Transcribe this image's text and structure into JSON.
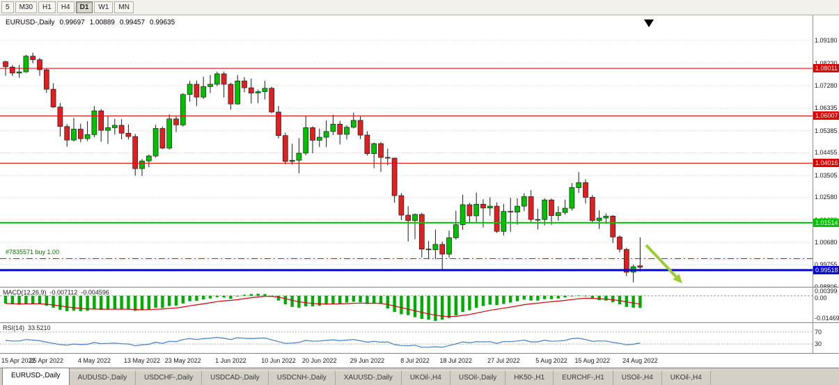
{
  "toolbar": {
    "timeframes": [
      {
        "label": "5",
        "active": false
      },
      {
        "label": "M30",
        "active": false
      },
      {
        "label": "H1",
        "active": false
      },
      {
        "label": "H4",
        "active": false
      },
      {
        "label": "D1",
        "active": true
      },
      {
        "label": "W1",
        "active": false
      },
      {
        "label": "MN",
        "active": false
      }
    ]
  },
  "chart_header": {
    "symbol": "EURUSD-,Daily",
    "open": "0.99697",
    "high": "1.00889",
    "low": "0.99457",
    "close": "0.99635"
  },
  "price_axis_ticks": [
    "1.09180",
    "1.08230",
    "1.07280",
    "1.06335",
    "1.05385",
    "1.04455",
    "1.03505",
    "1.02580",
    "1.01630",
    "1.00680",
    "0.99755",
    "0.98805"
  ],
  "hlines": [
    {
      "name": "resistance-upper",
      "price": 1.08011,
      "label": "1.08011",
      "color": "#E00000",
      "width": 1
    },
    {
      "name": "resistance-mid",
      "price": 1.06007,
      "label": "1.06007",
      "color": "#E00000",
      "width": 1
    },
    {
      "name": "resistance-lower",
      "price": 1.04016,
      "label": "1.04016",
      "color": "#E00000",
      "width": 1
    },
    {
      "name": "support-green",
      "price": 1.01514,
      "label": "1.01514",
      "color": "#00C400",
      "width": 2
    },
    {
      "name": "current-level-blue",
      "price": 0.99518,
      "label": "0.99518",
      "color": "#0000D8",
      "width": 3
    }
  ],
  "position_line": {
    "label": "#7835571 buy 1.00",
    "price": 1.0,
    "color": "#008000"
  },
  "objects": {
    "top_marker": {
      "shape": "down-triangle",
      "color": "#000000"
    },
    "trend_arrow": {
      "direction": "down-right",
      "color": "#9ACD32"
    }
  },
  "chart_data": {
    "type": "candlestick",
    "symbol": "EURUSD",
    "timeframe": "Daily",
    "bull_color": "#00C000",
    "bear_color": "#E02020",
    "x_labels": [
      {
        "label": "15 Apr 2022",
        "i": 0
      },
      {
        "label": "25 Apr 2022",
        "i": 6
      },
      {
        "label": "4 May 2022",
        "i": 13
      },
      {
        "label": "13 May 2022",
        "i": 20
      },
      {
        "label": "23 May 2022",
        "i": 26
      },
      {
        "label": "1 Jun 2022",
        "i": 33
      },
      {
        "label": "10 Jun 2022",
        "i": 40
      },
      {
        "label": "20 Jun 2022",
        "i": 46
      },
      {
        "label": "29 Jun 2022",
        "i": 53
      },
      {
        "label": "8 Jul 2022",
        "i": 60
      },
      {
        "label": "18 Jul 2022",
        "i": 66
      },
      {
        "label": "27 Jul 2022",
        "i": 73
      },
      {
        "label": "5 Aug 2022",
        "i": 80
      },
      {
        "label": "15 Aug 2022",
        "i": 86
      },
      {
        "label": "24 Aug 2022",
        "i": 93
      }
    ],
    "candles": [
      [
        1.0829,
        1.0833,
        1.077,
        1.0808
      ],
      [
        1.0806,
        1.0815,
        1.0769,
        1.0781
      ],
      [
        1.0781,
        1.0815,
        1.0761,
        1.0786
      ],
      [
        1.0786,
        1.0858,
        1.0782,
        1.0852
      ],
      [
        1.0852,
        1.0867,
        1.0822,
        1.0837
      ],
      [
        1.0837,
        1.0845,
        1.077,
        1.0795
      ],
      [
        1.0795,
        1.08,
        1.0697,
        1.0713
      ],
      [
        1.0713,
        1.0738,
        1.0635,
        1.0638
      ],
      [
        1.0638,
        1.0655,
        1.0514,
        1.0556
      ],
      [
        1.0556,
        1.0567,
        1.0471,
        1.0499
      ],
      [
        1.0499,
        1.0592,
        1.0493,
        1.0545
      ],
      [
        1.0545,
        1.0568,
        1.049,
        1.0505
      ],
      [
        1.0505,
        1.0578,
        1.0495,
        1.0522
      ],
      [
        1.0522,
        1.0642,
        1.0511,
        1.0622
      ],
      [
        1.0622,
        1.063,
        1.0492,
        1.054
      ],
      [
        1.054,
        1.0599,
        1.0483,
        1.0551
      ],
      [
        1.0551,
        1.0588,
        1.0522,
        1.0561
      ],
      [
        1.0561,
        1.0587,
        1.0502,
        1.0528
      ],
      [
        1.0528,
        1.0565,
        1.0501,
        1.0514
      ],
      [
        1.0514,
        1.0525,
        1.0349,
        1.0379
      ],
      [
        1.0379,
        1.0419,
        1.0348,
        1.0411
      ],
      [
        1.0411,
        1.0438,
        1.0384,
        1.0432
      ],
      [
        1.0432,
        1.0563,
        1.0425,
        1.0548
      ],
      [
        1.0548,
        1.0556,
        1.0461,
        1.0465
      ],
      [
        1.0465,
        1.0607,
        1.0459,
        1.0588
      ],
      [
        1.0588,
        1.0601,
        1.0532,
        1.0563
      ],
      [
        1.0563,
        1.0697,
        1.0556,
        1.0691
      ],
      [
        1.0691,
        1.0748,
        1.0661,
        1.0734
      ],
      [
        1.0734,
        1.075,
        1.0642,
        1.068
      ],
      [
        1.068,
        1.0765,
        1.0672,
        1.0724
      ],
      [
        1.0724,
        1.0773,
        1.0697,
        1.0734
      ],
      [
        1.0734,
        1.0787,
        1.0726,
        1.0778
      ],
      [
        1.0778,
        1.0787,
        1.0678,
        1.0734
      ],
      [
        1.0734,
        1.074,
        1.0627,
        1.0651
      ],
      [
        1.0651,
        1.0773,
        1.0648,
        1.0748
      ],
      [
        1.0748,
        1.0764,
        1.07,
        1.0719
      ],
      [
        1.0719,
        1.0758,
        1.0653,
        1.0697
      ],
      [
        1.0697,
        1.0712,
        1.0654,
        1.0703
      ],
      [
        1.0703,
        1.0749,
        1.067,
        1.0717
      ],
      [
        1.0717,
        1.0724,
        1.0612,
        1.0617
      ],
      [
        1.0617,
        1.0642,
        1.0506,
        1.0518
      ],
      [
        1.0518,
        1.0529,
        1.0397,
        1.0409
      ],
      [
        1.0409,
        1.0483,
        1.0396,
        1.0414
      ],
      [
        1.0414,
        1.0507,
        1.0359,
        1.0444
      ],
      [
        1.0444,
        1.0601,
        1.0435,
        1.0551
      ],
      [
        1.0551,
        1.0557,
        1.0443,
        1.0498
      ],
      [
        1.0498,
        1.0547,
        1.047,
        1.0511
      ],
      [
        1.0511,
        1.0582,
        1.0469,
        1.0535
      ],
      [
        1.0535,
        1.0605,
        1.052,
        1.0566
      ],
      [
        1.0566,
        1.058,
        1.0481,
        1.0523
      ],
      [
        1.0523,
        1.0561,
        1.0501,
        1.0553
      ],
      [
        1.0553,
        1.0615,
        1.0548,
        1.0582
      ],
      [
        1.0582,
        1.0602,
        1.0503,
        1.052
      ],
      [
        1.052,
        1.0536,
        1.0434,
        1.0442
      ],
      [
        1.0442,
        1.0488,
        1.0381,
        1.0484
      ],
      [
        1.0484,
        1.049,
        1.0365,
        1.0426
      ],
      [
        1.0426,
        1.0463,
        1.0393,
        1.0423
      ],
      [
        1.0423,
        1.0425,
        1.0235,
        1.0265
      ],
      [
        1.0265,
        1.0276,
        1.0162,
        1.0183
      ],
      [
        1.0183,
        1.0221,
        1.0072,
        1.016
      ],
      [
        1.016,
        1.019,
        1.0082,
        1.0186
      ],
      [
        1.0186,
        1.0193,
        1.0005,
        1.004
      ],
      [
        1.004,
        1.0074,
        0.9998,
        1.0037
      ],
      [
        1.0037,
        1.0122,
        0.9998,
        1.006
      ],
      [
        1.006,
        1.0072,
        0.995,
        1.0019
      ],
      [
        1.0019,
        1.0118,
        1.0004,
        1.0088
      ],
      [
        1.0088,
        1.0201,
        1.008,
        1.0143
      ],
      [
        1.0143,
        1.0269,
        1.0121,
        1.0227
      ],
      [
        1.0227,
        1.0235,
        1.0152,
        1.018
      ],
      [
        1.018,
        1.0278,
        1.0154,
        1.0229
      ],
      [
        1.0229,
        1.025,
        1.0131,
        1.0213
      ],
      [
        1.0213,
        1.0258,
        1.018,
        1.0221
      ],
      [
        1.0221,
        1.0236,
        1.0108,
        1.0115
      ],
      [
        1.0115,
        1.023,
        1.0097,
        1.0199
      ],
      [
        1.0199,
        1.0256,
        1.0113,
        1.0196
      ],
      [
        1.0196,
        1.0254,
        1.0143,
        1.0221
      ],
      [
        1.0221,
        1.0275,
        1.02,
        1.0261
      ],
      [
        1.0261,
        1.0288,
        1.0154,
        1.0165
      ],
      [
        1.0165,
        1.021,
        1.0123,
        1.0165
      ],
      [
        1.0165,
        1.0254,
        1.014,
        1.0247
      ],
      [
        1.0247,
        1.0253,
        1.0142,
        1.0181
      ],
      [
        1.0181,
        1.0221,
        1.016,
        1.0194
      ],
      [
        1.0194,
        1.0248,
        1.0185,
        1.0212
      ],
      [
        1.0212,
        1.0318,
        1.0202,
        1.0299
      ],
      [
        1.0299,
        1.0364,
        1.0276,
        1.032
      ],
      [
        1.032,
        1.0334,
        1.0232,
        1.0258
      ],
      [
        1.0258,
        1.0268,
        1.0154,
        1.016
      ],
      [
        1.016,
        1.0203,
        1.0125,
        1.0171
      ],
      [
        1.0171,
        1.019,
        1.0146,
        1.0179
      ],
      [
        1.0179,
        1.0184,
        1.0066,
        1.0091
      ],
      [
        1.0091,
        1.0098,
        1.0026,
        1.0039
      ],
      [
        1.0039,
        1.0046,
        0.9926,
        0.9943
      ],
      [
        0.9943,
        0.9975,
        0.99,
        0.9966
      ],
      [
        0.99697,
        1.00889,
        0.99457,
        0.99635
      ]
    ],
    "indicators": {
      "macd": {
        "label": "MACD(12,26,9)",
        "value_main": "-0.007112",
        "value_signal": "-0.004596",
        "axis_labels": [
          "0.00399",
          "0.00",
          "-0.01469"
        ],
        "histogram": [
          -0.0045,
          -0.005,
          -0.0052,
          -0.0048,
          -0.0045,
          -0.0048,
          -0.0058,
          -0.007,
          -0.0082,
          -0.009,
          -0.0088,
          -0.009,
          -0.0088,
          -0.008,
          -0.0082,
          -0.008,
          -0.0077,
          -0.0078,
          -0.008,
          -0.0088,
          -0.0085,
          -0.008,
          -0.007,
          -0.0072,
          -0.006,
          -0.0058,
          -0.0045,
          -0.0032,
          -0.003,
          -0.0022,
          -0.0016,
          -0.0008,
          -0.001,
          -0.0018,
          -0.0004,
          0.0006,
          0.001,
          0.0012,
          0.001,
          -0.0002,
          -0.0028,
          -0.005,
          -0.0065,
          -0.007,
          -0.0062,
          -0.0062,
          -0.0058,
          -0.0052,
          -0.0045,
          -0.0045,
          -0.004,
          -0.0035,
          -0.0038,
          -0.0048,
          -0.0045,
          -0.0048,
          -0.0075,
          -0.0095,
          -0.0108,
          -0.0113,
          -0.0125,
          -0.0135,
          -0.014,
          -0.0147,
          -0.014,
          -0.013,
          -0.0115,
          -0.0095,
          -0.0085,
          -0.007,
          -0.006,
          -0.0052,
          -0.0055,
          -0.0048,
          -0.004,
          -0.0032,
          -0.0022,
          -0.0028,
          -0.0028,
          -0.002,
          -0.002,
          -0.0016,
          -0.001,
          -0.0004,
          0.0002,
          -0.0002,
          -0.0018,
          -0.0025,
          -0.0028,
          -0.0038,
          -0.005,
          -0.0065,
          -0.007,
          -0.00711
        ]
      },
      "rsi": {
        "label": "RSI(14)",
        "value": "33.5210",
        "levels": [
          70,
          30
        ],
        "values": [
          42,
          40,
          40,
          45,
          43,
          41,
          36,
          32,
          28,
          26,
          30,
          28,
          29,
          35,
          31,
          32,
          33,
          31,
          30,
          24,
          27,
          29,
          36,
          32,
          39,
          38,
          45,
          48,
          45,
          48,
          49,
          52,
          49,
          45,
          51,
          49,
          48,
          49,
          50,
          44,
          38,
          32,
          33,
          35,
          42,
          39,
          40,
          42,
          44,
          41,
          43,
          45,
          41,
          36,
          39,
          36,
          37,
          28,
          25,
          24,
          26,
          19,
          19,
          21,
          19,
          25,
          30,
          37,
          34,
          38,
          37,
          38,
          32,
          38,
          38,
          40,
          43,
          37,
          37,
          43,
          39,
          40,
          42,
          48,
          49,
          45,
          39,
          40,
          40,
          35,
          32,
          27,
          29,
          33.5
        ]
      }
    }
  },
  "tabs": [
    {
      "label": "EURUSD-,Daily",
      "active": true
    },
    {
      "label": "AUDUSD-,Daily",
      "active": false
    },
    {
      "label": "USDCHF-,Daily",
      "active": false
    },
    {
      "label": "USDCAD-,Daily",
      "active": false
    },
    {
      "label": "USDCNH-,Daily",
      "active": false
    },
    {
      "label": "XAUUSD-,Daily",
      "active": false
    },
    {
      "label": "UKOil-,H4",
      "active": false
    },
    {
      "label": "USOil-,Daily",
      "active": false
    },
    {
      "label": "HK50-,H1",
      "active": false
    },
    {
      "label": "EURCHF-,H1",
      "active": false
    },
    {
      "label": "USOil-,H4",
      "active": false
    },
    {
      "label": "UKOil-,H4",
      "active": false
    }
  ]
}
